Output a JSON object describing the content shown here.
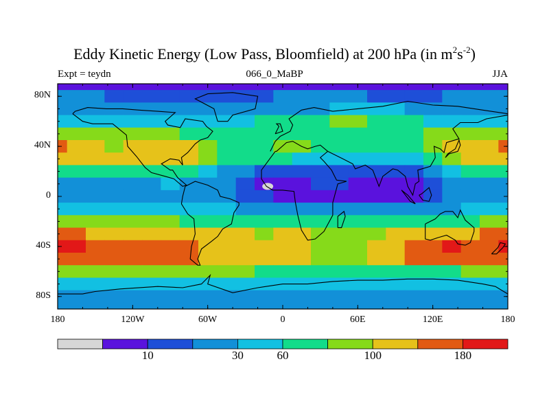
{
  "title": {
    "main": "Eddy Kinetic Energy (Low Pass, Bloomfield) at 200 hPa (in m",
    "sup1": "2",
    "mid": "s",
    "sup2": "-2",
    "end": ")"
  },
  "subtitle": {
    "left": "Expt = teydn",
    "center": "066_0_MaBP",
    "right": "JJA"
  },
  "colors": {
    "levels": [
      "#d6d6d6",
      "#5a12dd",
      "#1e4fd8",
      "#1290d8",
      "#12c0e2",
      "#12dc8a",
      "#86da1a",
      "#e6c21a",
      "#e25a12",
      "#e21818"
    ],
    "coastline": "#000000"
  },
  "chart_data": {
    "type": "heatmap",
    "title": "Eddy Kinetic Energy (Low Pass, Bloomfield) at 200 hPa (in m^2 s^-2)",
    "projection": "cylindrical equidistant",
    "x_range": [
      -180,
      180
    ],
    "y_range": [
      -90,
      90
    ],
    "x_ticks": [
      {
        "value": -180,
        "label": "180"
      },
      {
        "value": -120,
        "label": "120W"
      },
      {
        "value": -60,
        "label": "60W"
      },
      {
        "value": 0,
        "label": "0"
      },
      {
        "value": 60,
        "label": "60E"
      },
      {
        "value": 120,
        "label": "120E"
      },
      {
        "value": 180,
        "label": "180"
      }
    ],
    "y_ticks": [
      {
        "value": 80,
        "label": "80N"
      },
      {
        "value": 40,
        "label": "40N"
      },
      {
        "value": 0,
        "label": "0"
      },
      {
        "value": -40,
        "label": "40S"
      },
      {
        "value": -80,
        "label": "80S"
      }
    ],
    "colorbar": {
      "bin_count": 10,
      "labels": [
        {
          "bin_edge": 2,
          "label": "10"
        },
        {
          "bin_edge": 4,
          "label": "30"
        },
        {
          "bin_edge": 5,
          "label": "60"
        },
        {
          "bin_edge": 7,
          "label": "100"
        },
        {
          "bin_edge": 9,
          "label": "180"
        }
      ]
    },
    "field": {
      "lon_step": 15,
      "lat_step": 10,
      "lons": [
        -180,
        -165,
        -150,
        -135,
        -120,
        -105,
        -90,
        -75,
        -60,
        -45,
        -30,
        -15,
        0,
        15,
        30,
        45,
        60,
        75,
        90,
        105,
        120,
        135,
        150,
        165,
        180
      ],
      "lats": [
        90,
        80,
        70,
        60,
        50,
        40,
        30,
        20,
        10,
        0,
        -10,
        -20,
        -30,
        -40,
        -50,
        -60,
        -70,
        -80,
        -90
      ],
      "levels": [
        [
          1,
          1,
          1,
          1,
          1,
          1,
          1,
          1,
          1,
          1,
          1,
          1,
          1,
          1,
          1,
          1,
          1,
          1,
          1,
          1,
          1,
          1,
          1,
          1,
          1
        ],
        [
          3,
          3,
          3,
          2,
          2,
          2,
          2,
          2,
          2,
          2,
          2,
          2,
          3,
          3,
          3,
          3,
          3,
          2,
          2,
          2,
          2,
          3,
          3,
          3,
          3
        ],
        [
          3,
          3,
          3,
          3,
          3,
          3,
          3,
          3,
          3,
          3,
          3,
          3,
          3,
          3,
          3,
          4,
          4,
          4,
          4,
          3,
          3,
          3,
          3,
          3,
          3
        ],
        [
          4,
          4,
          4,
          4,
          4,
          4,
          4,
          4,
          4,
          4,
          4,
          5,
          5,
          5,
          5,
          6,
          6,
          5,
          5,
          5,
          4,
          4,
          4,
          4,
          4
        ],
        [
          6,
          6,
          6,
          6,
          6,
          6,
          6,
          5,
          5,
          5,
          5,
          5,
          5,
          5,
          5,
          5,
          5,
          5,
          5,
          5,
          6,
          6,
          6,
          6,
          6
        ],
        [
          8,
          7,
          7,
          6,
          7,
          7,
          7,
          7,
          6,
          5,
          5,
          5,
          6,
          6,
          5,
          5,
          5,
          5,
          5,
          5,
          6,
          7,
          7,
          7,
          8
        ],
        [
          7,
          7,
          7,
          7,
          7,
          7,
          7,
          7,
          6,
          5,
          5,
          5,
          5,
          4,
          4,
          4,
          4,
          4,
          4,
          4,
          5,
          6,
          7,
          7,
          7
        ],
        [
          5,
          5,
          5,
          5,
          5,
          5,
          5,
          5,
          4,
          3,
          3,
          2,
          2,
          2,
          2,
          2,
          2,
          2,
          2,
          2,
          3,
          4,
          5,
          5,
          5
        ],
        [
          3,
          3,
          3,
          3,
          3,
          3,
          4,
          3,
          3,
          3,
          2,
          1,
          1,
          1,
          2,
          2,
          1,
          1,
          1,
          1,
          2,
          3,
          3,
          3,
          3
        ],
        [
          3,
          3,
          3,
          3,
          3,
          3,
          3,
          3,
          3,
          3,
          2,
          2,
          1,
          1,
          1,
          1,
          1,
          1,
          1,
          1,
          2,
          3,
          3,
          3,
          3
        ],
        [
          4,
          4,
          4,
          4,
          4,
          4,
          4,
          4,
          4,
          4,
          3,
          3,
          3,
          3,
          3,
          3,
          3,
          3,
          3,
          3,
          3,
          3,
          4,
          4,
          4
        ],
        [
          6,
          6,
          6,
          6,
          6,
          6,
          6,
          5,
          5,
          5,
          5,
          5,
          5,
          5,
          5,
          5,
          5,
          5,
          5,
          5,
          5,
          5,
          5,
          6,
          6
        ],
        [
          8,
          8,
          7,
          7,
          7,
          7,
          7,
          7,
          7,
          7,
          7,
          6,
          7,
          7,
          6,
          6,
          6,
          6,
          7,
          7,
          7,
          7,
          7,
          8,
          8
        ],
        [
          9,
          9,
          8,
          8,
          8,
          8,
          8,
          8,
          7,
          7,
          7,
          7,
          7,
          7,
          6,
          6,
          6,
          7,
          7,
          8,
          8,
          9,
          8,
          8,
          9
        ],
        [
          8,
          8,
          8,
          8,
          8,
          8,
          8,
          8,
          7,
          7,
          7,
          7,
          7,
          7,
          6,
          6,
          6,
          7,
          7,
          8,
          8,
          8,
          8,
          8,
          8
        ],
        [
          6,
          6,
          6,
          6,
          6,
          6,
          6,
          6,
          6,
          6,
          6,
          5,
          5,
          5,
          5,
          5,
          5,
          5,
          5,
          5,
          5,
          5,
          6,
          6,
          6
        ],
        [
          4,
          4,
          4,
          4,
          4,
          4,
          4,
          4,
          4,
          4,
          4,
          4,
          4,
          4,
          4,
          4,
          4,
          4,
          4,
          4,
          4,
          4,
          4,
          4,
          4
        ],
        [
          3,
          3,
          3,
          3,
          3,
          3,
          3,
          3,
          3,
          3,
          3,
          3,
          3,
          3,
          3,
          3,
          3,
          3,
          3,
          3,
          3,
          3,
          3,
          3,
          3
        ],
        [
          3,
          3,
          3,
          3,
          3,
          3,
          3,
          3,
          3,
          3,
          3,
          3,
          3,
          3,
          3,
          3,
          3,
          3,
          3,
          3,
          3,
          3,
          3,
          3,
          3
        ]
      ]
    }
  }
}
